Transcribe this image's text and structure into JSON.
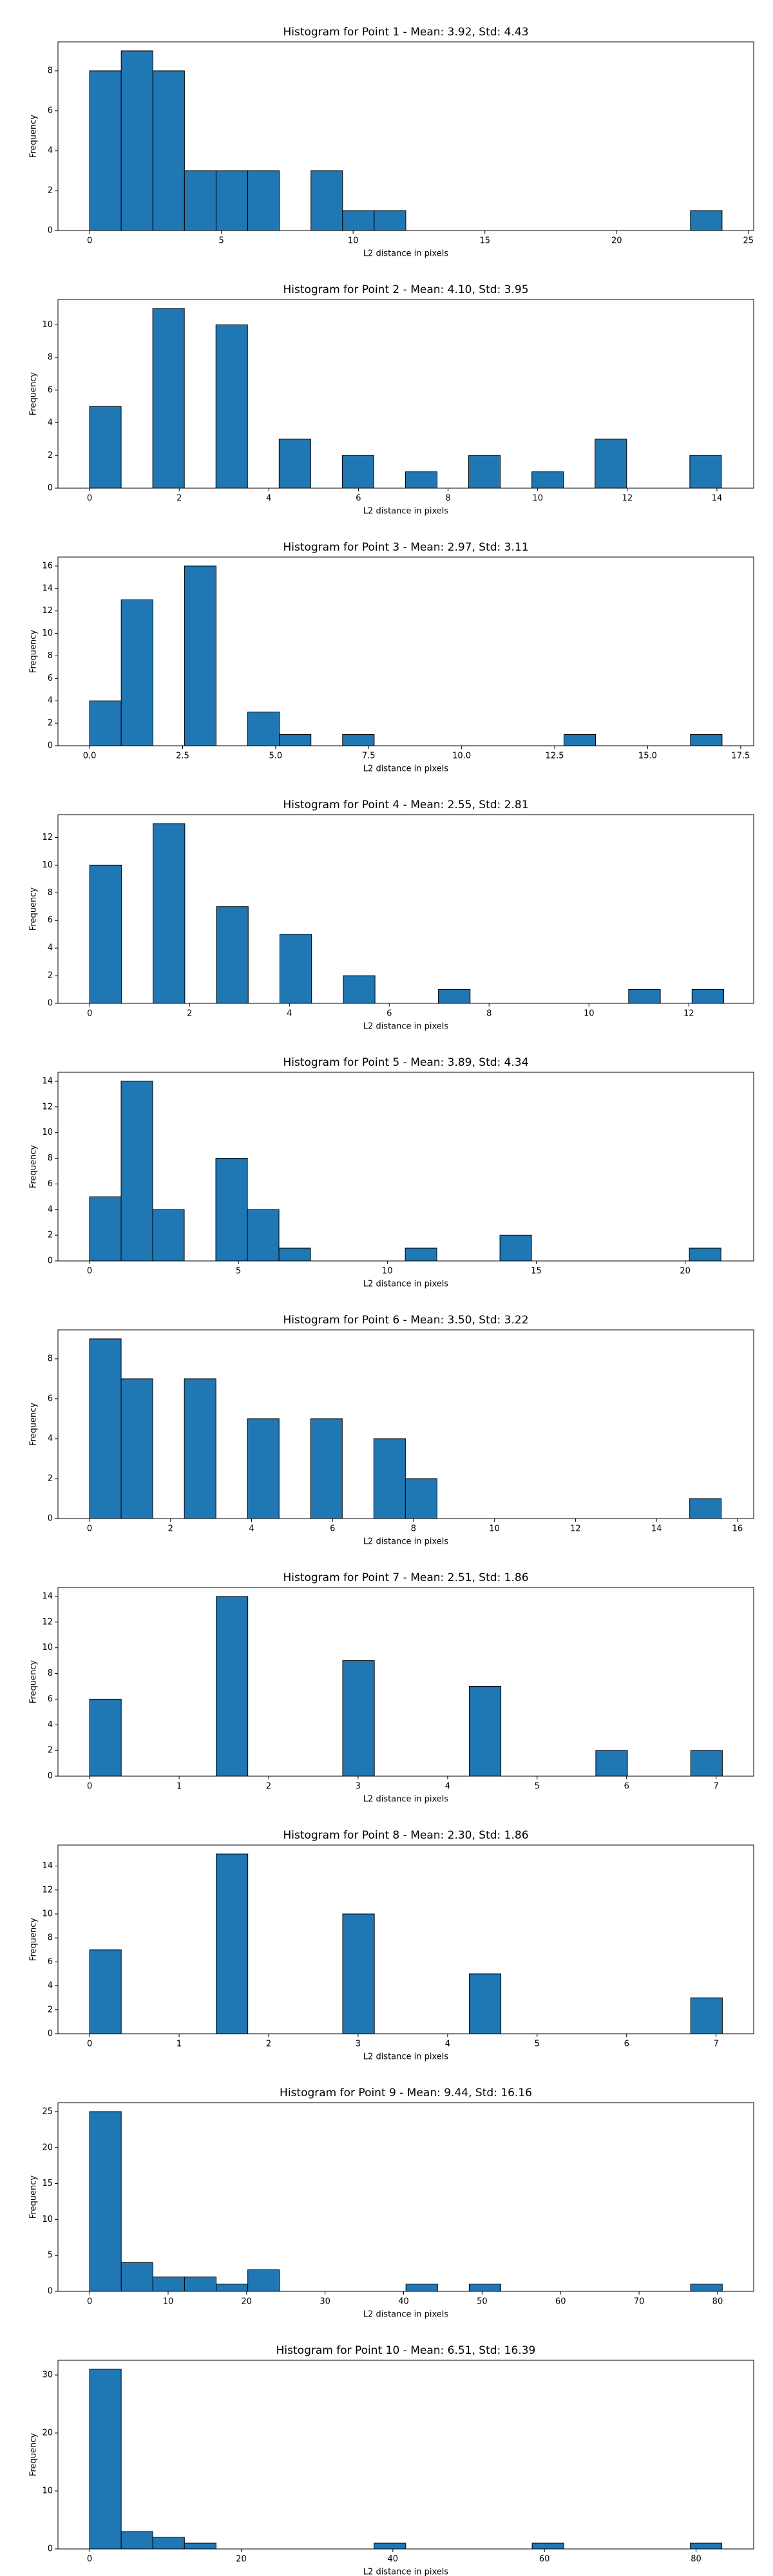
{
  "chart_data": [
    {
      "type": "histogram",
      "title": "Histogram for Point 1 - Mean: 3.92, Std: 4.43",
      "xlabel": "L2 distance in pixels",
      "ylabel": "Frequency",
      "color": "#1f77b4",
      "edge_color": "#000000",
      "bins": [
        0,
        1.2,
        2.4,
        3.6,
        4.8,
        6,
        7.2,
        8.4,
        9.6,
        10.8,
        12,
        13.2,
        14.4,
        15.6,
        16.8,
        18,
        19.2,
        20.4,
        21.6,
        22.8,
        24
      ],
      "counts": [
        8,
        9,
        8,
        3,
        3,
        3,
        0,
        3,
        1,
        1,
        0,
        0,
        0,
        0,
        0,
        0,
        0,
        0,
        0,
        1
      ],
      "xlim": [
        -1.2,
        25.2
      ],
      "ylim": [
        0,
        9.45
      ],
      "xticks": [
        0,
        5,
        10,
        15,
        20,
        25
      ],
      "yticks": [
        0,
        2,
        4,
        6,
        8
      ]
    },
    {
      "type": "histogram",
      "title": "Histogram for Point 2 - Mean: 4.10, Std: 3.95",
      "xlabel": "L2 distance in pixels",
      "ylabel": "Frequency",
      "color": "#1f77b4",
      "edge_color": "#000000",
      "bins": [
        0,
        0.705,
        1.41,
        2.115,
        2.82,
        3.525,
        4.23,
        4.935,
        5.64,
        6.345,
        7.05,
        7.755,
        8.46,
        9.165,
        9.87,
        10.575,
        11.28,
        11.985,
        12.69,
        13.395,
        14.1
      ],
      "counts": [
        5,
        0,
        11,
        0,
        10,
        0,
        3,
        0,
        2,
        0,
        1,
        0,
        2,
        0,
        1,
        0,
        3,
        0,
        0,
        2
      ],
      "xlim": [
        -0.705,
        14.82
      ],
      "ylim": [
        0,
        11.55
      ],
      "xticks": [
        0,
        2,
        4,
        6,
        8,
        10,
        12,
        14
      ],
      "yticks": [
        0,
        2,
        4,
        6,
        8,
        10
      ]
    },
    {
      "type": "histogram",
      "title": "Histogram for Point 3 - Mean: 2.97, Std: 3.11",
      "xlabel": "L2 distance in pixels",
      "ylabel": "Frequency",
      "color": "#1f77b4",
      "edge_color": "#000000",
      "bins": [
        0,
        0.85,
        1.7,
        2.55,
        3.4,
        4.25,
        5.1,
        5.95,
        6.8,
        7.65,
        8.5,
        9.35,
        10.2,
        11.05,
        11.9,
        12.75,
        13.6,
        14.45,
        15.3,
        16.15,
        17
      ],
      "counts": [
        4,
        13,
        0,
        16,
        0,
        3,
        1,
        0,
        1,
        0,
        0,
        0,
        0,
        0,
        0,
        1,
        0,
        0,
        0,
        1
      ],
      "xlim": [
        -0.85,
        17.85
      ],
      "ylim": [
        0,
        16.8
      ],
      "xticks": [
        {
          "value": 0,
          "label": "0.0"
        },
        2.5,
        {
          "value": 5,
          "label": "5.0"
        },
        7.5,
        {
          "value": 10,
          "label": "10.0"
        },
        12.5,
        {
          "value": 15,
          "label": "15.0"
        },
        17.5
      ],
      "yticks": [
        0,
        2,
        4,
        6,
        8,
        10,
        12,
        14,
        16
      ]
    },
    {
      "type": "histogram",
      "title": "Histogram for Point 4 - Mean: 2.55, Std: 2.81",
      "xlabel": "L2 distance in pixels",
      "ylabel": "Frequency",
      "color": "#1f77b4",
      "edge_color": "#000000",
      "bins": [
        0,
        0.635,
        1.27,
        1.905,
        2.54,
        3.175,
        3.81,
        4.445,
        5.08,
        5.715,
        6.35,
        6.985,
        7.62,
        8.255,
        8.89,
        9.525,
        10.16,
        10.795,
        11.43,
        12.065,
        12.7
      ],
      "counts": [
        10,
        0,
        13,
        0,
        7,
        0,
        5,
        0,
        2,
        0,
        0,
        1,
        0,
        0,
        0,
        0,
        0,
        1,
        0,
        1
      ],
      "xlim": [
        -0.635,
        13.3
      ],
      "ylim": [
        0,
        13.65
      ],
      "xticks": [
        0,
        2,
        4,
        6,
        8,
        10,
        12
      ],
      "yticks": [
        0,
        2,
        4,
        6,
        8,
        10,
        12
      ]
    },
    {
      "type": "histogram",
      "title": "Histogram for Point 5 - Mean: 3.89, Std: 4.34",
      "xlabel": "L2 distance in pixels",
      "ylabel": "Frequency",
      "color": "#1f77b4",
      "edge_color": "#000000",
      "bins": [
        0,
        1.06,
        2.12,
        3.18,
        4.24,
        5.3,
        6.36,
        7.42,
        8.48,
        9.54,
        10.6,
        11.66,
        12.72,
        13.78,
        14.84,
        15.9,
        16.96,
        18.02,
        19.08,
        20.14,
        21.2
      ],
      "counts": [
        5,
        14,
        4,
        0,
        8,
        4,
        1,
        0,
        0,
        0,
        1,
        0,
        0,
        2,
        0,
        0,
        0,
        0,
        0,
        1
      ],
      "xlim": [
        -1.06,
        22.3
      ],
      "ylim": [
        0,
        14.7
      ],
      "xticks": [
        0,
        5,
        10,
        15,
        20
      ],
      "yticks": [
        0,
        2,
        4,
        6,
        8,
        10,
        12,
        14
      ]
    },
    {
      "type": "histogram",
      "title": "Histogram for Point 6 - Mean: 3.50, Std: 3.22",
      "xlabel": "L2 distance in pixels",
      "ylabel": "Frequency",
      "color": "#1f77b4",
      "edge_color": "#000000",
      "bins": [
        0,
        0.78,
        1.56,
        2.34,
        3.12,
        3.9,
        4.68,
        5.46,
        6.24,
        7.02,
        7.8,
        8.58,
        9.36,
        10.14,
        10.92,
        11.7,
        12.48,
        13.26,
        14.04,
        14.82,
        15.6
      ],
      "counts": [
        9,
        7,
        0,
        7,
        0,
        5,
        0,
        5,
        0,
        4,
        2,
        0,
        0,
        0,
        0,
        0,
        0,
        0,
        0,
        1
      ],
      "xlim": [
        -0.78,
        16.4
      ],
      "ylim": [
        0,
        9.45
      ],
      "xticks": [
        0,
        2,
        4,
        6,
        8,
        10,
        12,
        14,
        16
      ],
      "yticks": [
        0,
        2,
        4,
        6,
        8
      ]
    },
    {
      "type": "histogram",
      "title": "Histogram for Point 7 - Mean: 2.51, Std: 1.86",
      "xlabel": "L2 distance in pixels",
      "ylabel": "Frequency",
      "color": "#1f77b4",
      "edge_color": "#000000",
      "bins": [
        0,
        0.3535,
        0.707,
        1.0605,
        1.414,
        1.7675,
        2.121,
        2.4745,
        2.828,
        3.1815,
        3.535,
        3.8885,
        4.242,
        4.5955,
        4.949,
        5.3025,
        5.656,
        6.0095,
        6.363,
        6.7165,
        7.07
      ],
      "counts": [
        6,
        0,
        0,
        0,
        14,
        0,
        0,
        0,
        9,
        0,
        0,
        0,
        7,
        0,
        0,
        0,
        2,
        0,
        0,
        2
      ],
      "xlim": [
        -0.3535,
        7.42
      ],
      "ylim": [
        0,
        14.7
      ],
      "xticks": [
        0,
        1,
        2,
        3,
        4,
        5,
        6,
        7
      ],
      "yticks": [
        0,
        2,
        4,
        6,
        8,
        10,
        12,
        14
      ]
    },
    {
      "type": "histogram",
      "title": "Histogram for Point 8 - Mean: 2.30, Std: 1.86",
      "xlabel": "L2 distance in pixels",
      "ylabel": "Frequency",
      "color": "#1f77b4",
      "edge_color": "#000000",
      "bins": [
        0,
        0.3535,
        0.707,
        1.0605,
        1.414,
        1.7675,
        2.121,
        2.4745,
        2.828,
        3.1815,
        3.535,
        3.8885,
        4.242,
        4.5955,
        4.949,
        5.3025,
        5.656,
        6.0095,
        6.363,
        6.7165,
        7.07
      ],
      "counts": [
        7,
        0,
        0,
        0,
        15,
        0,
        0,
        0,
        10,
        0,
        0,
        0,
        5,
        0,
        0,
        0,
        0,
        0,
        0,
        3
      ],
      "xlim": [
        -0.3535,
        7.42
      ],
      "ylim": [
        0,
        15.75
      ],
      "xticks": [
        0,
        1,
        2,
        3,
        4,
        5,
        6,
        7
      ],
      "yticks": [
        0,
        2,
        4,
        6,
        8,
        10,
        12,
        14
      ]
    },
    {
      "type": "histogram",
      "title": "Histogram for Point 9 - Mean: 9.44, Std: 16.16",
      "xlabel": "L2 distance in pixels",
      "ylabel": "Frequency",
      "color": "#1f77b4",
      "edge_color": "#000000",
      "bins": [
        0,
        4.03,
        8.06,
        12.09,
        16.12,
        20.15,
        24.18,
        28.21,
        32.24,
        36.27,
        40.3,
        44.33,
        48.36,
        52.39,
        56.42,
        60.45,
        64.48,
        68.51,
        72.54,
        76.57,
        80.6
      ],
      "counts": [
        25,
        4,
        2,
        2,
        1,
        3,
        0,
        0,
        0,
        0,
        1,
        0,
        1,
        0,
        0,
        0,
        0,
        0,
        0,
        1
      ],
      "xlim": [
        -4.03,
        84.6
      ],
      "ylim": [
        0,
        26.25
      ],
      "xticks": [
        0,
        10,
        20,
        30,
        40,
        50,
        60,
        70,
        80
      ],
      "yticks": [
        0,
        5,
        10,
        15,
        20,
        25
      ]
    },
    {
      "type": "histogram",
      "title": "Histogram for Point 10 - Mean: 6.51, Std: 16.39",
      "xlabel": "L2 distance in pixels",
      "ylabel": "Frequency",
      "color": "#1f77b4",
      "edge_color": "#000000",
      "bins": [
        0,
        4.17,
        8.34,
        12.51,
        16.68,
        20.85,
        25.02,
        29.19,
        33.36,
        37.53,
        41.7,
        45.87,
        50.04,
        54.21,
        58.38,
        62.55,
        66.72,
        70.89,
        75.06,
        79.23,
        83.4
      ],
      "counts": [
        31,
        3,
        2,
        1,
        0,
        0,
        0,
        0,
        0,
        1,
        0,
        0,
        0,
        0,
        1,
        0,
        0,
        0,
        0,
        1
      ],
      "xlim": [
        -4.17,
        87.6
      ],
      "ylim": [
        0,
        32.55
      ],
      "xticks": [
        0,
        20,
        40,
        60,
        80
      ],
      "yticks": [
        0,
        10,
        20,
        30
      ]
    }
  ]
}
